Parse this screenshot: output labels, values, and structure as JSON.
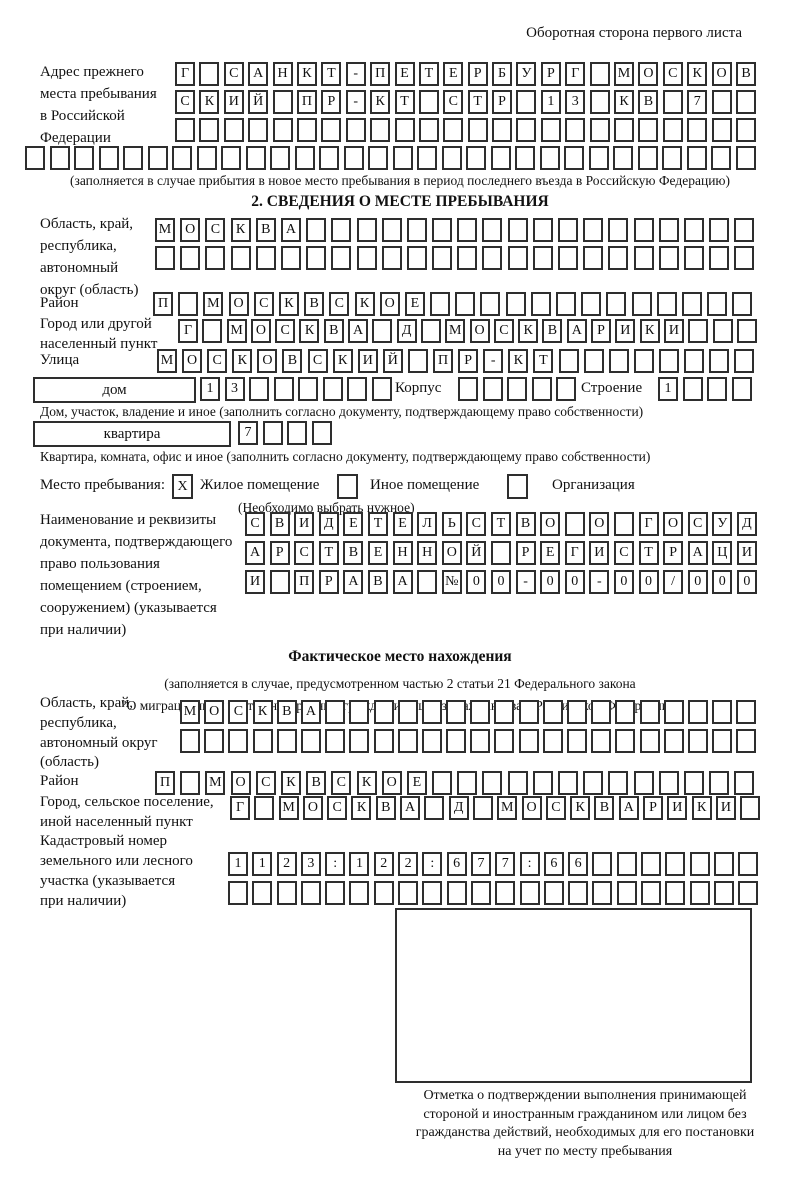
{
  "page": {
    "side_note": "Оборотная сторона первого листа"
  },
  "prev_address": {
    "label_lines": [
      "Адрес прежнего",
      "места пребывания",
      "в Российской",
      "Федерации"
    ],
    "rows": [
      "Г САНКТ-ПЕТЕРБУРГ МОСКОВ",
      "СКИЙ ПР-КТ СТР 13 КВ 7  ",
      "                        ",
      "                              "
    ],
    "note": "(заполняется в случае прибытия в новое место пребывания в период последнего въезда в Российскую Федерацию)"
  },
  "section2": {
    "heading": "2. СВЕДЕНИЯ О МЕСТЕ ПРЕБЫВАНИЯ",
    "oblast": {
      "label_lines": [
        "Область, край,",
        "республика,",
        "автономный",
        "округ (область)"
      ],
      "rows": [
        "МОСКВА                  ",
        "                        "
      ]
    },
    "raion": {
      "label": "Район",
      "row": "П МОСКВСКОЕ             "
    },
    "gorod": {
      "label_lines": [
        "Город или другой",
        "населенный пункт"
      ],
      "row": "Г МОСКВА Д МОСКВАРИКИ   "
    },
    "ulitsa": {
      "label": "Улица",
      "row": "МОСКОВСКИЙ ПР-КТ        "
    },
    "dom": {
      "box_label": "дом",
      "cells": "13      ",
      "korpus_label": "Корпус",
      "korpus_cells": "     ",
      "stroenie_label": "Строение",
      "stroenie_cells": "1   "
    },
    "dom_note": "Дом, участок, владение и иное (заполнить согласно документу, подтверждающему право собственности)",
    "kvartira": {
      "box_label": "квартира",
      "cells": "7   "
    },
    "kvartira_note": "Квартира, комната, офис и иное (заполнить согласно документу, подтверждающему право собственности)",
    "mesto": {
      "label": "Место пребывания:",
      "option1_checked": "X",
      "option1": "Жилое помещение",
      "option2_checked": "",
      "option2": "Иное помещение",
      "option3_checked": "",
      "option3": "Организация",
      "note": "(Необходимо выбрать нужное)"
    },
    "doc": {
      "label_lines": [
        "Наименование и реквизиты",
        "документа, подтверждающего",
        "право пользования",
        "помещением (строением,",
        "сооружением) (указывается",
        "при наличии)"
      ],
      "rows": [
        "СВИДЕТЕЛЬСТВО О ГОСУД",
        "АРСТВЕННОЙ РЕГИСТРАЦИ",
        "И ПРАВА №00-00-00/000"
      ]
    }
  },
  "fact": {
    "heading": "Фактическое место нахождения",
    "note_lines": [
      "(заполняется в случае, предусмотренном частью 2 статьи 21 Федерального закона",
      "\"О миграционном учете иностранных граждан и лиц без гражданства в Российской Федерации\")"
    ],
    "oblast": {
      "label_lines": [
        "Область, край,",
        "республика,",
        "автономный округ",
        "(область)"
      ],
      "rows": [
        "МОСКВА                  ",
        "                        "
      ]
    },
    "raion": {
      "label": "Район",
      "row": "П МОСКВСКОЕ             "
    },
    "gorod": {
      "label_lines": [
        "Город, сельское поселение,",
        "иной населенный пункт"
      ],
      "row": "Г МОСКВА Д МОСКВАРИКИ "
    },
    "kadastr": {
      "label_lines": [
        "Кадастровый номер",
        "земельного или лесного",
        "участка (указывается",
        "при наличии)"
      ],
      "rows": [
        "1123:122:677:66       ",
        "                      "
      ]
    },
    "stamp_caption_lines": [
      "Отметка о подтверждении выполнения принимающей",
      "стороной и иностранным гражданином или лицом без",
      "гражданства действий, необходимых для его постановки",
      "на учет по месту пребывания"
    ]
  }
}
